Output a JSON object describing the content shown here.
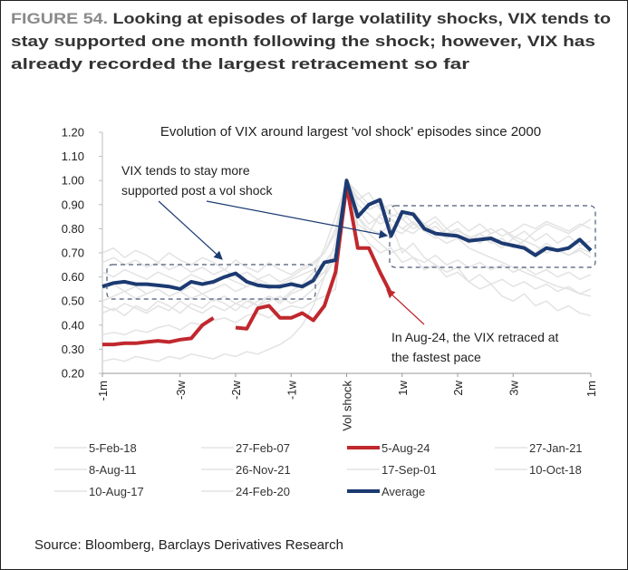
{
  "chart_data": {
    "type": "line",
    "figure_label": "FIGURE 54.",
    "title_lines": [
      "Looking at episodes of large volatility shocks, VIX tends to",
      "stay supported one month following the shock; however, VIX has",
      "already recorded the largest retracement so far"
    ],
    "title": "Evolution of VIX around largest 'vol shock' episodes since 2000",
    "annotations": [
      {
        "lines": [
          "VIX tends to stay more",
          "supported post a vol shock"
        ],
        "color": "#1c3a72"
      },
      {
        "lines": [
          "In Aug-24, the VIX retraced at",
          "the fastest pace"
        ],
        "color": "#c0282d"
      }
    ],
    "source": "Source: Bloomberg, Barclays Derivatives Research",
    "x": [
      -22,
      -21,
      -20,
      -19,
      -18,
      -17,
      -16,
      -15,
      -14,
      -13,
      -12,
      -11,
      -10,
      -9,
      -8,
      -7,
      -6,
      -5,
      -4,
      -3,
      -2,
      -1,
      0,
      1,
      2,
      3,
      4,
      5,
      6,
      7,
      8,
      9,
      10,
      11,
      12,
      13,
      14,
      15,
      16,
      17,
      18,
      19,
      20,
      21,
      22
    ],
    "xlim": [
      -22,
      22
    ],
    "xticks": [
      {
        "value": -22,
        "label": "-1m"
      },
      {
        "value": -15,
        "label": "-3w"
      },
      {
        "value": -10,
        "label": "-2w"
      },
      {
        "value": -5,
        "label": "-1w"
      },
      {
        "value": 0,
        "label": "Vol shock"
      },
      {
        "value": 5,
        "label": "1w"
      },
      {
        "value": 10,
        "label": "2w"
      },
      {
        "value": 15,
        "label": "3w"
      },
      {
        "value": 22,
        "label": "1m"
      }
    ],
    "ylim": [
      0.2,
      1.2
    ],
    "yticks": [
      {
        "value": 0.2,
        "label": "0.20"
      },
      {
        "value": 0.3,
        "label": "0.30"
      },
      {
        "value": 0.4,
        "label": "0.40"
      },
      {
        "value": 0.5,
        "label": "0.50"
      },
      {
        "value": 0.6,
        "label": "0.60"
      },
      {
        "value": 0.7,
        "label": "0.70"
      },
      {
        "value": 0.8,
        "label": "0.80"
      },
      {
        "value": 0.9,
        "label": "0.90"
      },
      {
        "value": 1.0,
        "label": "1.00"
      },
      {
        "value": 1.1,
        "label": "1.10"
      },
      {
        "value": 1.2,
        "label": "1.20"
      }
    ],
    "grid": false,
    "legend": "bottom",
    "series": [
      {
        "name": "5-Feb-18",
        "color": "#e3e3e3",
        "line_width": 1.5,
        "values": [
          0.36,
          0.37,
          0.36,
          0.38,
          0.37,
          0.39,
          0.4,
          0.38,
          0.41,
          0.4,
          0.42,
          0.43,
          0.41,
          0.44,
          0.45,
          0.43,
          0.46,
          0.48,
          0.47,
          0.5,
          0.52,
          0.55,
          1.0,
          0.93,
          0.88,
          0.9,
          0.85,
          0.87,
          0.82,
          0.8,
          0.83,
          0.78,
          0.8,
          0.76,
          0.78,
          0.74,
          0.76,
          0.72,
          0.75,
          0.73,
          0.7,
          0.72,
          0.69,
          0.71,
          0.68
        ]
      },
      {
        "name": "27-Feb-07",
        "color": "#e3e3e3",
        "line_width": 1.5,
        "values": [
          0.62,
          0.6,
          0.63,
          0.61,
          0.59,
          0.62,
          0.6,
          0.58,
          0.61,
          0.59,
          0.57,
          0.6,
          0.58,
          0.56,
          0.59,
          0.57,
          0.55,
          0.58,
          0.56,
          0.6,
          0.62,
          0.7,
          1.0,
          0.88,
          0.82,
          0.85,
          0.8,
          0.78,
          0.82,
          0.79,
          0.76,
          0.8,
          0.77,
          0.74,
          0.78,
          0.75,
          0.72,
          0.76,
          0.73,
          0.7,
          0.74,
          0.71,
          0.69,
          0.72,
          0.7
        ]
      },
      {
        "name": "5-Aug-24",
        "color": "#c0282d",
        "line_width": 4,
        "values": [
          0.32,
          0.32,
          0.325,
          0.325,
          0.33,
          0.335,
          0.33,
          0.34,
          0.345,
          0.4,
          0.43,
          null,
          0.39,
          0.385,
          0.47,
          0.48,
          0.43,
          0.43,
          0.45,
          0.42,
          0.48,
          0.62,
          0.98,
          0.72,
          0.72,
          0.62,
          0.53,
          null,
          null,
          null,
          null,
          null,
          null,
          null,
          null,
          null,
          null,
          null,
          null,
          null,
          null,
          null,
          null,
          null,
          null
        ]
      },
      {
        "name": "27-Jan-21",
        "color": "#e3e3e3",
        "line_width": 1.5,
        "values": [
          0.7,
          0.72,
          0.68,
          0.71,
          0.69,
          0.66,
          0.7,
          0.67,
          0.65,
          0.68,
          0.66,
          0.63,
          0.67,
          0.64,
          0.62,
          0.66,
          0.63,
          0.61,
          0.64,
          0.66,
          0.7,
          0.78,
          1.0,
          0.9,
          0.86,
          0.82,
          0.84,
          0.8,
          0.78,
          0.82,
          0.79,
          0.76,
          0.79,
          0.77,
          0.74,
          0.78,
          0.8,
          0.77,
          0.75,
          0.79,
          0.82,
          0.8,
          0.78,
          0.81,
          0.84
        ]
      },
      {
        "name": "8-Aug-11",
        "color": "#e3e3e3",
        "line_width": 1.5,
        "values": [
          0.45,
          0.47,
          0.44,
          0.48,
          0.46,
          0.5,
          0.48,
          0.45,
          0.49,
          0.47,
          0.51,
          0.49,
          0.46,
          0.5,
          0.48,
          0.52,
          0.5,
          0.54,
          0.57,
          0.62,
          0.72,
          0.85,
          1.0,
          0.92,
          0.95,
          0.88,
          0.9,
          0.84,
          0.87,
          0.82,
          0.85,
          0.8,
          0.83,
          0.79,
          0.82,
          0.78,
          0.8,
          0.76,
          0.79,
          0.75,
          0.78,
          0.74,
          0.77,
          0.73,
          0.75
        ]
      },
      {
        "name": "26-Nov-21",
        "color": "#e3e3e3",
        "line_width": 1.5,
        "values": [
          0.55,
          0.57,
          0.54,
          0.56,
          0.53,
          0.55,
          0.52,
          0.54,
          0.51,
          0.53,
          0.5,
          0.52,
          0.49,
          0.51,
          0.48,
          0.5,
          0.52,
          0.49,
          0.51,
          0.55,
          0.6,
          0.68,
          1.0,
          0.8,
          0.74,
          0.7,
          0.72,
          0.66,
          0.68,
          0.63,
          0.65,
          0.6,
          0.62,
          0.58,
          0.61,
          0.57,
          0.59,
          0.56,
          0.58,
          0.55,
          0.57,
          0.54,
          0.56,
          0.53,
          0.55
        ]
      },
      {
        "name": "17-Sep-01",
        "color": "#e3e3e3",
        "line_width": 1.5,
        "values": [
          0.5,
          0.52,
          0.54,
          0.51,
          0.53,
          0.55,
          0.52,
          0.54,
          0.56,
          0.53,
          0.55,
          0.57,
          0.54,
          0.56,
          0.58,
          0.55,
          0.57,
          0.59,
          0.61,
          0.63,
          0.66,
          0.72,
          1.0,
          0.95,
          0.9,
          0.92,
          0.86,
          0.84,
          0.8,
          0.82,
          0.77,
          0.74,
          0.76,
          0.72,
          0.7,
          0.68,
          0.66,
          0.64,
          0.62,
          0.6,
          0.58,
          0.56,
          0.55,
          0.53,
          0.52
        ]
      },
      {
        "name": "10-Oct-18",
        "color": "#e3e3e3",
        "line_width": 1.5,
        "values": [
          0.48,
          0.46,
          0.49,
          0.47,
          0.45,
          0.48,
          0.46,
          0.5,
          0.47,
          0.45,
          0.48,
          0.46,
          0.49,
          0.47,
          0.5,
          0.52,
          0.49,
          0.53,
          0.55,
          0.58,
          0.62,
          0.7,
          1.0,
          0.82,
          0.78,
          0.86,
          0.84,
          0.8,
          0.83,
          0.79,
          0.81,
          0.77,
          0.8,
          0.76,
          0.78,
          0.8,
          0.77,
          0.79,
          0.82,
          0.8,
          0.83,
          0.81,
          0.79,
          0.82,
          0.8
        ]
      },
      {
        "name": "10-Aug-17",
        "color": "#e3e3e3",
        "line_width": 1.5,
        "values": [
          0.66,
          0.68,
          0.65,
          0.67,
          0.64,
          0.66,
          0.63,
          0.65,
          0.62,
          0.64,
          0.61,
          0.63,
          0.6,
          0.62,
          0.59,
          0.61,
          0.58,
          0.6,
          0.63,
          0.65,
          0.7,
          0.8,
          1.0,
          0.85,
          0.78,
          0.74,
          0.7,
          0.72,
          0.68,
          0.66,
          0.69,
          0.65,
          0.67,
          0.64,
          0.66,
          0.63,
          0.65,
          0.62,
          0.64,
          0.61,
          0.63,
          0.6,
          0.62,
          0.59,
          0.61
        ]
      },
      {
        "name": "24-Feb-20",
        "color": "#e3e3e3",
        "line_width": 1.5,
        "values": [
          0.25,
          0.26,
          0.25,
          0.27,
          0.26,
          0.25,
          0.27,
          0.26,
          0.28,
          0.27,
          0.26,
          0.28,
          0.27,
          0.29,
          0.28,
          0.3,
          0.32,
          0.35,
          0.4,
          0.48,
          0.6,
          0.75,
          1.0,
          0.85,
          0.8,
          0.78,
          0.82,
          0.7,
          0.74,
          0.68,
          0.65,
          0.62,
          0.64,
          0.58,
          0.55,
          0.57,
          0.52,
          0.5,
          0.53,
          0.48,
          0.5,
          0.46,
          0.48,
          0.45,
          0.44
        ]
      },
      {
        "name": "Average",
        "color": "#1c3a72",
        "line_width": 4,
        "values": [
          0.56,
          0.575,
          0.58,
          0.57,
          0.57,
          0.565,
          0.56,
          0.55,
          0.58,
          0.57,
          0.58,
          0.6,
          0.615,
          0.58,
          0.565,
          0.56,
          0.56,
          0.57,
          0.56,
          0.585,
          0.66,
          0.67,
          1.0,
          0.85,
          0.9,
          0.92,
          0.77,
          0.87,
          0.86,
          0.8,
          0.78,
          0.775,
          0.77,
          0.75,
          0.755,
          0.76,
          0.74,
          0.73,
          0.72,
          0.69,
          0.72,
          0.71,
          0.72,
          0.755,
          0.71
        ]
      }
    ]
  }
}
